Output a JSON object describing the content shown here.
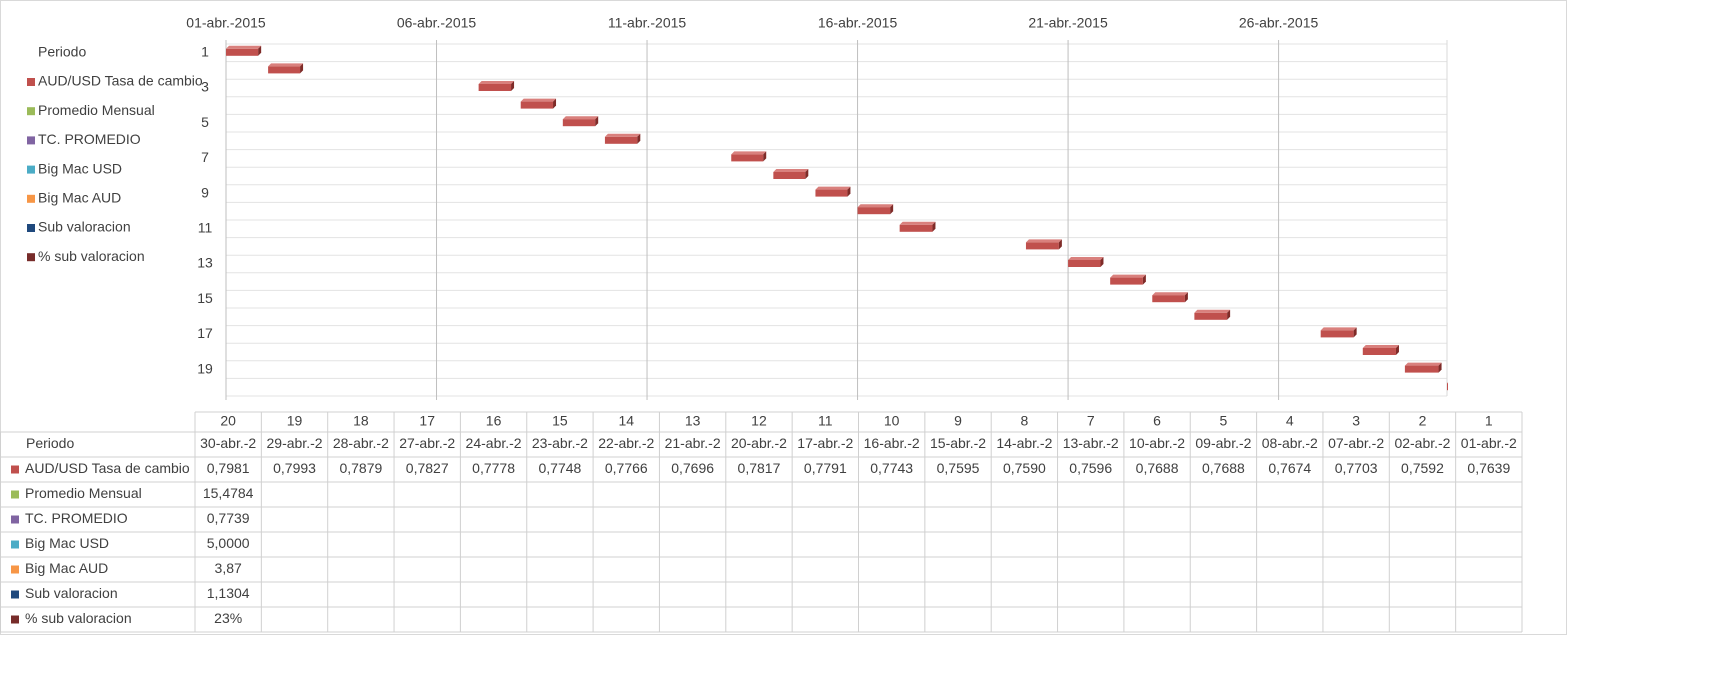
{
  "chart_data": {
    "type": "bar",
    "legend_title": "Periodo",
    "categories": [
      1,
      2,
      3,
      4,
      5,
      6,
      7,
      8,
      9,
      10,
      11,
      12,
      13,
      14,
      15,
      16,
      17,
      18,
      19,
      20
    ],
    "x": [
      "2015-04-01",
      "2015-04-02",
      "2015-04-07",
      "2015-04-08",
      "2015-04-09",
      "2015-04-10",
      "2015-04-13",
      "2015-04-14",
      "2015-04-15",
      "2015-04-16",
      "2015-04-17",
      "2015-04-20",
      "2015-04-21",
      "2015-04-22",
      "2015-04-23",
      "2015-04-24",
      "2015-04-27",
      "2015-04-28",
      "2015-04-29",
      "2015-04-30"
    ],
    "x_labels": [
      "01-abr.-2",
      "02-abr.-2",
      "07-abr.-2",
      "08-abr.-2",
      "09-abr.-2",
      "10-abr.-2",
      "13-abr.-2",
      "14-abr.-2",
      "15-abr.-2",
      "16-abr.-2",
      "17-abr.-2",
      "20-abr.-2",
      "21-abr.-2",
      "22-abr.-2",
      "23-abr.-2",
      "24-abr.-2",
      "27-abr.-2",
      "28-abr.-2",
      "29-abr.-2",
      "30-abr.-2"
    ],
    "xlim": [
      "2015-04-01",
      "2015-04-30"
    ],
    "xticks": [
      {
        "value": "2015-04-01",
        "label": "01-abr.-2015"
      },
      {
        "value": "2015-04-06",
        "label": "06-abr.-2015"
      },
      {
        "value": "2015-04-11",
        "label": "11-abr.-2015"
      },
      {
        "value": "2015-04-16",
        "label": "16-abr.-2015"
      },
      {
        "value": "2015-04-21",
        "label": "21-abr.-2015"
      },
      {
        "value": "2015-04-26",
        "label": "26-abr.-2015"
      }
    ],
    "yticks": [
      1,
      3,
      5,
      7,
      9,
      11,
      13,
      15,
      17,
      19
    ],
    "grid": true,
    "series": [
      {
        "name": "AUD/USD Tasa de cambio",
        "color": "#c0504d",
        "values": [
          0.7639,
          0.7592,
          0.7703,
          0.7674,
          0.7688,
          0.7688,
          0.7596,
          0.759,
          0.7595,
          0.7743,
          0.7791,
          0.7817,
          0.7696,
          0.7766,
          0.7748,
          0.7778,
          0.7827,
          0.7879,
          0.7993,
          0.7981
        ],
        "value_labels": [
          "0,7639",
          "0,7592",
          "0,7703",
          "0,7674",
          "0,7688",
          "0,7688",
          "0,7596",
          "0,7590",
          "0,7595",
          "0,7743",
          "0,7791",
          "0,7817",
          "0,7696",
          "0,7766",
          "0,7748",
          "0,7778",
          "0,7827",
          "0,7879",
          "0,7993",
          "0,7981"
        ]
      },
      {
        "name": "Promedio Mensual",
        "color": "#9bbb59",
        "values": [
          null,
          null,
          null,
          null,
          null,
          null,
          null,
          null,
          null,
          null,
          null,
          null,
          null,
          null,
          null,
          null,
          null,
          null,
          null,
          15.4784
        ],
        "value_labels": [
          null,
          null,
          null,
          null,
          null,
          null,
          null,
          null,
          null,
          null,
          null,
          null,
          null,
          null,
          null,
          null,
          null,
          null,
          null,
          "15,4784"
        ]
      },
      {
        "name": "TC. PROMEDIO",
        "color": "#8064a2",
        "values": [
          null,
          null,
          null,
          null,
          null,
          null,
          null,
          null,
          null,
          null,
          null,
          null,
          null,
          null,
          null,
          null,
          null,
          null,
          null,
          0.7739
        ],
        "value_labels": [
          null,
          null,
          null,
          null,
          null,
          null,
          null,
          null,
          null,
          null,
          null,
          null,
          null,
          null,
          null,
          null,
          null,
          null,
          null,
          "0,7739"
        ]
      },
      {
        "name": "Big Mac USD",
        "color": "#4bacc6",
        "values": [
          null,
          null,
          null,
          null,
          null,
          null,
          null,
          null,
          null,
          null,
          null,
          null,
          null,
          null,
          null,
          null,
          null,
          null,
          null,
          5
        ],
        "value_labels": [
          null,
          null,
          null,
          null,
          null,
          null,
          null,
          null,
          null,
          null,
          null,
          null,
          null,
          null,
          null,
          null,
          null,
          null,
          null,
          "5,0000"
        ]
      },
      {
        "name": "Big Mac AUD",
        "color": "#f79646",
        "values": [
          null,
          null,
          null,
          null,
          null,
          null,
          null,
          null,
          null,
          null,
          null,
          null,
          null,
          null,
          null,
          null,
          null,
          null,
          null,
          3.87
        ],
        "value_labels": [
          null,
          null,
          null,
          null,
          null,
          null,
          null,
          null,
          null,
          null,
          null,
          null,
          null,
          null,
          null,
          null,
          null,
          null,
          null,
          "3,87"
        ]
      },
      {
        "name": "Sub valoracion",
        "color": "#1f497d",
        "values": [
          null,
          null,
          null,
          null,
          null,
          null,
          null,
          null,
          null,
          null,
          null,
          null,
          null,
          null,
          null,
          null,
          null,
          null,
          null,
          1.1304
        ],
        "value_labels": [
          null,
          null,
          null,
          null,
          null,
          null,
          null,
          null,
          null,
          null,
          null,
          null,
          null,
          null,
          null,
          null,
          null,
          null,
          null,
          "1,1304"
        ]
      },
      {
        "name": "% sub valoracion",
        "color": "#772c2a",
        "values": [
          null,
          null,
          null,
          null,
          null,
          null,
          null,
          null,
          null,
          null,
          null,
          null,
          null,
          null,
          null,
          null,
          null,
          null,
          null,
          23
        ],
        "value_labels": [
          null,
          null,
          null,
          null,
          null,
          null,
          null,
          null,
          null,
          null,
          null,
          null,
          null,
          null,
          null,
          null,
          null,
          null,
          null,
          "23%"
        ]
      }
    ]
  }
}
